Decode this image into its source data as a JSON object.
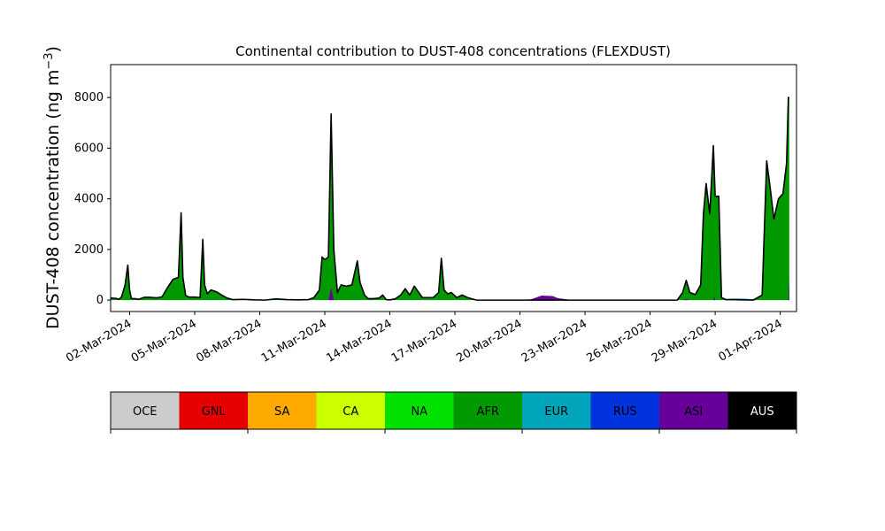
{
  "chart_data": {
    "type": "area",
    "title": "Continental contribution to DUST-408 concentrations (FLEXDUST)",
    "ylabel": "DUST-408 concentration (ng m",
    "ylabel_sup": "−3",
    "ylabel_close": ")",
    "xlabel": "",
    "ylim": [
      -450,
      9300
    ],
    "xlim": [
      "2024-03-01T03:00",
      "2024-04-01T18:00"
    ],
    "y_ticks": [
      0,
      2000,
      4000,
      6000,
      8000
    ],
    "y_tick_labels": [
      "0",
      "2000",
      "4000",
      "6000",
      "8000"
    ],
    "x_ticks": [
      "2024-03-02",
      "2024-03-05",
      "2024-03-08",
      "2024-03-11",
      "2024-03-14",
      "2024-03-17",
      "2024-03-20",
      "2024-03-23",
      "2024-03-26",
      "2024-03-29",
      "2024-04-01"
    ],
    "x_tick_labels": [
      "02-Mar-2024",
      "05-Mar-2024",
      "08-Mar-2024",
      "11-Mar-2024",
      "14-Mar-2024",
      "17-Mar-2024",
      "20-Mar-2024",
      "23-Mar-2024",
      "26-Mar-2024",
      "29-Mar-2024",
      "01-Apr-2024"
    ],
    "grid": false,
    "legend": {
      "placement": "bottom colorbar",
      "entries": [
        {
          "label": "OCE",
          "color": "#cccccc",
          "text_color": "#000000"
        },
        {
          "label": "GNL",
          "color": "#e60000",
          "text_color": "#000000"
        },
        {
          "label": "SA",
          "color": "#ffaa00",
          "text_color": "#000000"
        },
        {
          "label": "CA",
          "color": "#ccff00",
          "text_color": "#000000"
        },
        {
          "label": "NA",
          "color": "#00e100",
          "text_color": "#000000"
        },
        {
          "label": "AFR",
          "color": "#009900",
          "text_color": "#000000"
        },
        {
          "label": "EUR",
          "color": "#00a5bb",
          "text_color": "#000000"
        },
        {
          "label": "RUS",
          "color": "#0033dd",
          "text_color": "#000000"
        },
        {
          "label": "ASI",
          "color": "#660099",
          "text_color": "#000000"
        },
        {
          "label": "AUS",
          "color": "#000000",
          "text_color": "#ffffff"
        }
      ]
    },
    "total_line_color": "#000000",
    "series": [
      {
        "name": "AFR",
        "color": "#009900",
        "points": [
          [
            "2024-03-01T03:00",
            80
          ],
          [
            "2024-03-01T09:00",
            70
          ],
          [
            "2024-03-01T12:00",
            30
          ],
          [
            "2024-03-01T15:00",
            120
          ],
          [
            "2024-03-01T19:00",
            600
          ],
          [
            "2024-03-01T22:00",
            1380
          ],
          [
            "2024-03-02T00:00",
            400
          ],
          [
            "2024-03-02T02:00",
            60
          ],
          [
            "2024-03-02T06:00",
            60
          ],
          [
            "2024-03-02T10:00",
            30
          ],
          [
            "2024-03-02T16:00",
            110
          ],
          [
            "2024-03-02T22:00",
            110
          ],
          [
            "2024-03-03T06:00",
            90
          ],
          [
            "2024-03-03T12:00",
            130
          ],
          [
            "2024-03-03T18:00",
            500
          ],
          [
            "2024-03-04T00:00",
            820
          ],
          [
            "2024-03-04T06:00",
            900
          ],
          [
            "2024-03-04T09:00",
            3450
          ],
          [
            "2024-03-04T11:00",
            900
          ],
          [
            "2024-03-04T14:00",
            180
          ],
          [
            "2024-03-04T18:00",
            120
          ],
          [
            "2024-03-05T00:00",
            120
          ],
          [
            "2024-03-05T06:00",
            100
          ],
          [
            "2024-03-05T09:00",
            2400
          ],
          [
            "2024-03-05T11:00",
            600
          ],
          [
            "2024-03-05T14:00",
            250
          ],
          [
            "2024-03-05T18:00",
            400
          ],
          [
            "2024-03-06T00:00",
            330
          ],
          [
            "2024-03-06T06:00",
            200
          ],
          [
            "2024-03-06T12:00",
            80
          ],
          [
            "2024-03-06T18:00",
            20
          ],
          [
            "2024-03-07T06:00",
            30
          ],
          [
            "2024-03-07T12:00",
            20
          ],
          [
            "2024-03-07T18:00",
            10
          ],
          [
            "2024-03-08T06:00",
            0
          ],
          [
            "2024-03-08T18:00",
            50
          ],
          [
            "2024-03-09T06:00",
            20
          ],
          [
            "2024-03-09T18:00",
            10
          ],
          [
            "2024-03-10T06:00",
            20
          ],
          [
            "2024-03-10T12:00",
            100
          ],
          [
            "2024-03-10T18:00",
            400
          ],
          [
            "2024-03-10T21:00",
            1700
          ],
          [
            "2024-03-11T00:00",
            1600
          ],
          [
            "2024-03-11T04:00",
            1700
          ],
          [
            "2024-03-11T07:00",
            7350
          ],
          [
            "2024-03-11T10:00",
            2000
          ],
          [
            "2024-03-11T14:00",
            300
          ],
          [
            "2024-03-11T18:00",
            600
          ],
          [
            "2024-03-12T00:00",
            550
          ],
          [
            "2024-03-12T06:00",
            600
          ],
          [
            "2024-03-12T12:00",
            1550
          ],
          [
            "2024-03-12T15:00",
            700
          ],
          [
            "2024-03-12T20:00",
            200
          ],
          [
            "2024-03-13T00:00",
            60
          ],
          [
            "2024-03-13T06:00",
            60
          ],
          [
            "2024-03-13T12:00",
            80
          ],
          [
            "2024-03-13T16:00",
            200
          ],
          [
            "2024-03-13T20:00",
            20
          ],
          [
            "2024-03-14T00:00",
            10
          ],
          [
            "2024-03-14T06:00",
            50
          ],
          [
            "2024-03-14T12:00",
            200
          ],
          [
            "2024-03-14T17:00",
            450
          ],
          [
            "2024-03-14T22:00",
            200
          ],
          [
            "2024-03-15T03:00",
            550
          ],
          [
            "2024-03-15T08:00",
            300
          ],
          [
            "2024-03-15T12:00",
            100
          ],
          [
            "2024-03-15T18:00",
            100
          ],
          [
            "2024-03-16T00:00",
            100
          ],
          [
            "2024-03-16T06:00",
            300
          ],
          [
            "2024-03-16T09:00",
            1650
          ],
          [
            "2024-03-16T12:00",
            400
          ],
          [
            "2024-03-16T16:00",
            250
          ],
          [
            "2024-03-16T20:00",
            300
          ],
          [
            "2024-03-17T02:00",
            100
          ],
          [
            "2024-03-17T08:00",
            200
          ],
          [
            "2024-03-17T14:00",
            100
          ],
          [
            "2024-03-18T00:00",
            0
          ],
          [
            "2024-03-21T00:00",
            0
          ],
          [
            "2024-03-24T00:00",
            0
          ],
          [
            "2024-03-26T00:00",
            0
          ],
          [
            "2024-03-27T06:00",
            0
          ],
          [
            "2024-03-27T12:00",
            300
          ],
          [
            "2024-03-27T16:00",
            780
          ],
          [
            "2024-03-27T20:00",
            300
          ],
          [
            "2024-03-28T02:00",
            220
          ],
          [
            "2024-03-28T08:00",
            600
          ],
          [
            "2024-03-28T11:00",
            3400
          ],
          [
            "2024-03-28T14:00",
            4600
          ],
          [
            "2024-03-28T18:00",
            3400
          ],
          [
            "2024-03-28T22:00",
            6100
          ],
          [
            "2024-03-29T00:00",
            4100
          ],
          [
            "2024-03-29T04:00",
            4100
          ],
          [
            "2024-03-29T07:00",
            100
          ],
          [
            "2024-03-29T12:00",
            20
          ],
          [
            "2024-03-29T20:00",
            20
          ],
          [
            "2024-03-30T06:00",
            10
          ],
          [
            "2024-03-30T18:00",
            0
          ],
          [
            "2024-03-31T04:00",
            200
          ],
          [
            "2024-03-31T09:00",
            5500
          ],
          [
            "2024-03-31T13:00",
            4400
          ],
          [
            "2024-03-31T17:00",
            3200
          ],
          [
            "2024-03-31T22:00",
            4000
          ],
          [
            "2024-04-01T03:00",
            4200
          ],
          [
            "2024-04-01T07:00",
            5400
          ],
          [
            "2024-04-01T09:00",
            8000
          ],
          [
            "2024-04-01T10:00",
            8000
          ],
          [
            "2024-04-01T10:00",
            0
          ]
        ]
      },
      {
        "name": "ASI",
        "color": "#660099",
        "points": [
          [
            "2024-03-01T03:00",
            0
          ],
          [
            "2024-03-11T04:00",
            0
          ],
          [
            "2024-03-11T07:00",
            500
          ],
          [
            "2024-03-11T10:00",
            0
          ],
          [
            "2024-03-18T00:00",
            0
          ],
          [
            "2024-03-19T18:00",
            0
          ],
          [
            "2024-03-20T12:00",
            30
          ],
          [
            "2024-03-21T00:00",
            180
          ],
          [
            "2024-03-21T12:00",
            160
          ],
          [
            "2024-03-21T18:00",
            80
          ],
          [
            "2024-03-22T06:00",
            20
          ],
          [
            "2024-03-22T12:00",
            0
          ],
          [
            "2024-03-27T12:00",
            0
          ],
          [
            "2024-03-27T16:00",
            40
          ],
          [
            "2024-03-27T20:00",
            0
          ],
          [
            "2024-03-28T22:00",
            0
          ],
          [
            "2024-03-28T23:00",
            150
          ],
          [
            "2024-03-29T00:00",
            0
          ],
          [
            "2024-04-01T09:00",
            0
          ],
          [
            "2024-04-01T10:00",
            800
          ],
          [
            "2024-04-01T10:00",
            0
          ]
        ]
      },
      {
        "name": "EUR",
        "color": "#00a5bb",
        "points": [
          [
            "2024-03-01T03:00",
            0
          ],
          [
            "2024-03-29T06:00",
            0
          ],
          [
            "2024-03-29T12:00",
            40
          ],
          [
            "2024-03-29T20:00",
            60
          ],
          [
            "2024-03-30T06:00",
            60
          ],
          [
            "2024-03-30T18:00",
            40
          ],
          [
            "2024-03-31T00:00",
            0
          ],
          [
            "2024-04-01T10:00",
            0
          ]
        ]
      }
    ]
  }
}
